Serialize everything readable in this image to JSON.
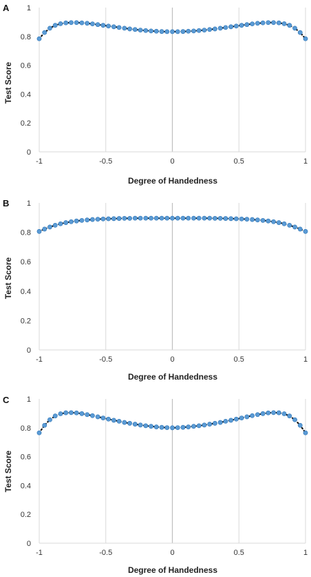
{
  "chart_data": [
    {
      "panel": "A",
      "type": "scatter",
      "xlabel": "Degree of Handedness",
      "ylabel": "Test Score",
      "xlim": [
        -1,
        1
      ],
      "ylim": [
        0,
        1
      ],
      "xticks": [
        -1,
        -0.5,
        0,
        0.5,
        1
      ],
      "xtick_labels": [
        "-1",
        "-0.5",
        "0",
        "0.5",
        "1"
      ],
      "yticks": [
        0,
        0.2,
        0.4,
        0.6,
        0.8,
        1
      ],
      "ytick_labels": [
        "0",
        "0.2",
        "0.4",
        "0.6",
        "0.8",
        "1"
      ],
      "grid": "vertical",
      "trendline": "dotted",
      "point_color": "#5b9bd5",
      "x": [
        -1,
        -0.96,
        -0.92,
        -0.88,
        -0.84,
        -0.8,
        -0.76,
        -0.72,
        -0.68,
        -0.64,
        -0.6,
        -0.56,
        -0.52,
        -0.48,
        -0.44,
        -0.4,
        -0.36,
        -0.32,
        -0.28,
        -0.24,
        -0.2,
        -0.16,
        -0.12,
        -0.08,
        -0.04,
        0,
        0.04,
        0.08,
        0.12,
        0.16,
        0.2,
        0.24,
        0.28,
        0.32,
        0.36,
        0.4,
        0.44,
        0.48,
        0.52,
        0.56,
        0.6,
        0.64,
        0.68,
        0.72,
        0.76,
        0.8,
        0.84,
        0.88,
        0.92,
        0.96,
        1
      ],
      "y": [
        0.784,
        0.827,
        0.857,
        0.877,
        0.888,
        0.894,
        0.896,
        0.896,
        0.894,
        0.891,
        0.887,
        0.882,
        0.877,
        0.872,
        0.867,
        0.862,
        0.857,
        0.852,
        0.848,
        0.844,
        0.841,
        0.838,
        0.836,
        0.834,
        0.833,
        0.833,
        0.833,
        0.834,
        0.836,
        0.838,
        0.841,
        0.844,
        0.848,
        0.852,
        0.857,
        0.862,
        0.867,
        0.872,
        0.877,
        0.882,
        0.887,
        0.891,
        0.894,
        0.896,
        0.896,
        0.894,
        0.888,
        0.877,
        0.857,
        0.827,
        0.784
      ]
    },
    {
      "panel": "B",
      "type": "scatter",
      "xlabel": "Degree of Handedness",
      "ylabel": "Test Score",
      "xlim": [
        -1,
        1
      ],
      "ylim": [
        0,
        1
      ],
      "xticks": [
        -1,
        -0.5,
        0,
        0.5,
        1
      ],
      "xtick_labels": [
        "-1",
        "-0.5",
        "0",
        "0.5",
        "1"
      ],
      "yticks": [
        0,
        0.2,
        0.4,
        0.6,
        0.8,
        1
      ],
      "ytick_labels": [
        "0",
        "0.2",
        "0.4",
        "0.6",
        "0.8",
        "1"
      ],
      "grid": "vertical",
      "trendline": "dotted",
      "point_color": "#5b9bd5",
      "x": [
        -1,
        -0.96,
        -0.92,
        -0.88,
        -0.84,
        -0.8,
        -0.76,
        -0.72,
        -0.68,
        -0.64,
        -0.6,
        -0.56,
        -0.52,
        -0.48,
        -0.44,
        -0.4,
        -0.36,
        -0.32,
        -0.28,
        -0.24,
        -0.2,
        -0.16,
        -0.12,
        -0.08,
        -0.04,
        0,
        0.04,
        0.08,
        0.12,
        0.16,
        0.2,
        0.24,
        0.28,
        0.32,
        0.36,
        0.4,
        0.44,
        0.48,
        0.52,
        0.56,
        0.6,
        0.64,
        0.68,
        0.72,
        0.76,
        0.8,
        0.84,
        0.88,
        0.92,
        0.96,
        1
      ],
      "y": [
        0.806,
        0.822,
        0.836,
        0.848,
        0.858,
        0.866,
        0.872,
        0.877,
        0.881,
        0.884,
        0.887,
        0.889,
        0.891,
        0.892,
        0.893,
        0.894,
        0.895,
        0.895,
        0.896,
        0.896,
        0.896,
        0.896,
        0.896,
        0.896,
        0.896,
        0.896,
        0.896,
        0.896,
        0.896,
        0.896,
        0.896,
        0.896,
        0.896,
        0.895,
        0.895,
        0.894,
        0.893,
        0.892,
        0.891,
        0.889,
        0.887,
        0.884,
        0.881,
        0.877,
        0.872,
        0.866,
        0.858,
        0.848,
        0.836,
        0.822,
        0.806
      ]
    },
    {
      "panel": "C",
      "type": "scatter",
      "xlabel": "Degree of Handedness",
      "ylabel": "Test Score",
      "xlim": [
        -1,
        1
      ],
      "ylim": [
        0,
        1
      ],
      "xticks": [
        -1,
        -0.5,
        0,
        0.5,
        1
      ],
      "xtick_labels": [
        "-1",
        "-0.5",
        "0",
        "0.5",
        "1"
      ],
      "yticks": [
        0,
        0.2,
        0.4,
        0.6,
        0.8,
        1
      ],
      "ytick_labels": [
        "0",
        "0.2",
        "0.4",
        "0.6",
        "0.8",
        "1"
      ],
      "grid": "vertical",
      "trendline": "dotted",
      "point_color": "#5b9bd5",
      "x": [
        -1,
        -0.96,
        -0.92,
        -0.88,
        -0.84,
        -0.8,
        -0.76,
        -0.72,
        -0.68,
        -0.64,
        -0.6,
        -0.56,
        -0.52,
        -0.48,
        -0.44,
        -0.4,
        -0.36,
        -0.32,
        -0.28,
        -0.24,
        -0.2,
        -0.16,
        -0.12,
        -0.08,
        -0.04,
        0,
        0.04,
        0.08,
        0.12,
        0.16,
        0.2,
        0.24,
        0.28,
        0.32,
        0.36,
        0.4,
        0.44,
        0.48,
        0.52,
        0.56,
        0.6,
        0.64,
        0.68,
        0.72,
        0.76,
        0.8,
        0.84,
        0.88,
        0.92,
        0.96,
        1
      ],
      "y": [
        0.765,
        0.817,
        0.856,
        0.882,
        0.897,
        0.904,
        0.905,
        0.903,
        0.898,
        0.891,
        0.884,
        0.876,
        0.868,
        0.86,
        0.852,
        0.845,
        0.837,
        0.831,
        0.825,
        0.819,
        0.814,
        0.81,
        0.806,
        0.803,
        0.801,
        0.8,
        0.801,
        0.803,
        0.806,
        0.81,
        0.814,
        0.819,
        0.825,
        0.831,
        0.837,
        0.845,
        0.852,
        0.86,
        0.868,
        0.876,
        0.884,
        0.891,
        0.898,
        0.903,
        0.905,
        0.904,
        0.897,
        0.882,
        0.856,
        0.817,
        0.765
      ]
    }
  ]
}
